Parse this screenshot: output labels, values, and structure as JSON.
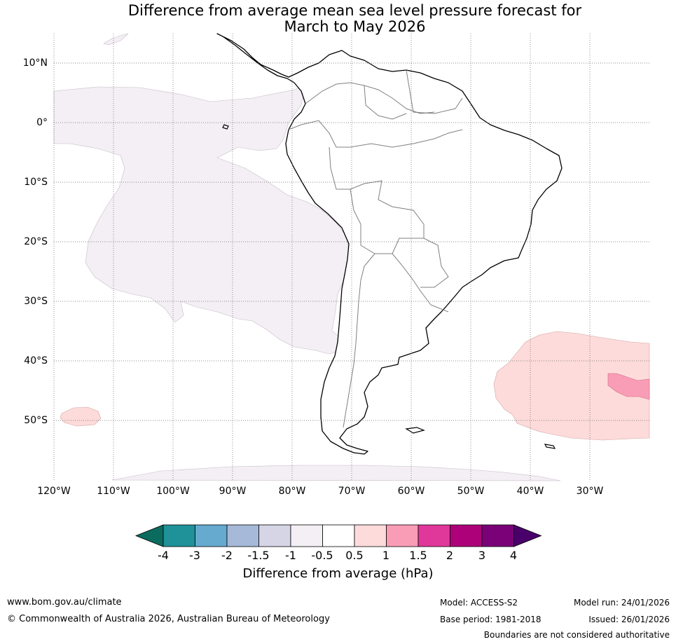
{
  "title_line1": "Difference from average mean sea level pressure forecast for",
  "title_line2": "March to May 2026",
  "lat_labels": [
    "10°N",
    "0°",
    "10°S",
    "20°S",
    "30°S",
    "40°S",
    "50°S"
  ],
  "lon_labels": [
    "120°W",
    "110°W",
    "100°W",
    "90°W",
    "80°W",
    "70°W",
    "60°W",
    "50°W",
    "40°W",
    "30°W"
  ],
  "colorbar": {
    "ticks": [
      "-4",
      "-3",
      "-2",
      "-1.5",
      "-1",
      "-0.5",
      "0.5",
      "1",
      "1.5",
      "2",
      "3",
      "4"
    ],
    "colors": [
      "#0c6b5f",
      "#1e9199",
      "#66aad0",
      "#a6b9d9",
      "#d5d5e5",
      "#f3eff4",
      "#ffffff",
      "#fddbdb",
      "#f99db6",
      "#e0379a",
      "#ad0179",
      "#7a0177",
      "#4a006a"
    ],
    "label": "Difference from average (hPa)"
  },
  "map_colors": {
    "minus_half_to_minus_one": "#f3eff4",
    "half_to_one": "#fddbdb",
    "one_to_one_half": "#f99db6"
  },
  "footer": {
    "url": "www.bom.gov.au/climate",
    "copyright": "© Commonwealth of Australia 2026, Australian Bureau of Meteorology",
    "model": "Model: ACCESS-S2",
    "base_period": "Base period: 1981-2018",
    "model_run": "Model run: 24/01/2026",
    "issued": "Issued: 26/01/2026",
    "disclaimer": "Boundaries are not considered authoritative"
  }
}
